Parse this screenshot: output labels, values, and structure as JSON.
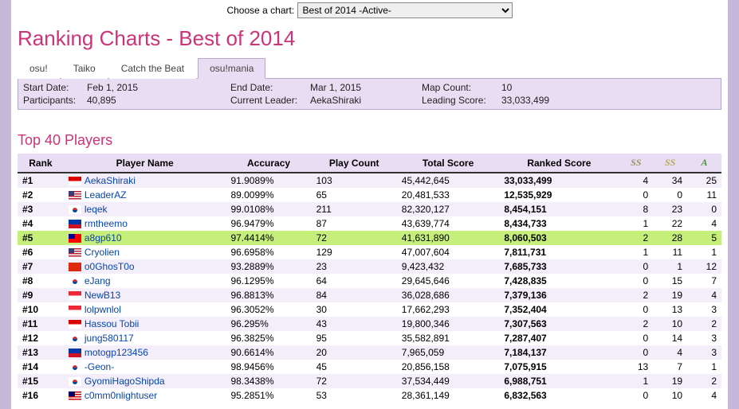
{
  "selector": {
    "label": "Choose a chart:",
    "value": "Best of 2014 -Active-"
  },
  "title": "Ranking Charts - Best of 2014",
  "tabs": [
    "osu!",
    "Taiko",
    "Catch the Beat",
    "osu!mania"
  ],
  "active_tab_index": 3,
  "info": {
    "start_date_label": "Start Date:",
    "start_date": "Feb 1, 2015",
    "end_date_label": "End Date:",
    "end_date": "Mar 1, 2015",
    "map_count_label": "Map Count:",
    "map_count": "10",
    "participants_label": "Participants:",
    "participants": "40,895",
    "leader_label": "Current Leader:",
    "leader": "AekaShiraki",
    "leading_score_label": "Leading Score:",
    "leading_score": "33,033,499"
  },
  "subheader": "Top 40 Players",
  "columns": {
    "rank": "Rank",
    "player": "Player Name",
    "accuracy": "Accuracy",
    "playcount": "Play Count",
    "total": "Total Score",
    "ranked": "Ranked Score",
    "ssh": "SS",
    "ss": "SS",
    "a": "A"
  },
  "highlight_player": "a8gp610",
  "rows": [
    {
      "rank": "#1",
      "flag": "ID",
      "player": "AekaShiraki",
      "accuracy": "91.9089%",
      "playcount": "103",
      "total": "45,442,645",
      "ranked": "33,033,499",
      "ssh": "4",
      "ss": "34",
      "a": "25"
    },
    {
      "rank": "#2",
      "flag": "US",
      "player": "LeaderAZ",
      "accuracy": "89.0099%",
      "playcount": "65",
      "total": "20,481,533",
      "ranked": "12,535,929",
      "ssh": "0",
      "ss": "0",
      "a": "11"
    },
    {
      "rank": "#3",
      "flag": "KR",
      "player": "leqek",
      "accuracy": "99.0108%",
      "playcount": "211",
      "total": "82,320,127",
      "ranked": "8,454,151",
      "ssh": "8",
      "ss": "23",
      "a": "0"
    },
    {
      "rank": "#4",
      "flag": "PH",
      "player": "rmtheemo",
      "accuracy": "96.9479%",
      "playcount": "87",
      "total": "43,639,774",
      "ranked": "8,434,733",
      "ssh": "1",
      "ss": "22",
      "a": "4"
    },
    {
      "rank": "#5",
      "flag": "TW",
      "player": "a8gp610",
      "accuracy": "97.4414%",
      "playcount": "72",
      "total": "41,631,890",
      "ranked": "8,060,503",
      "ssh": "2",
      "ss": "28",
      "a": "5"
    },
    {
      "rank": "#6",
      "flag": "US",
      "player": "Cryolien",
      "accuracy": "96.6958%",
      "playcount": "129",
      "total": "47,007,604",
      "ranked": "7,811,731",
      "ssh": "1",
      "ss": "11",
      "a": "1"
    },
    {
      "rank": "#7",
      "flag": "HK",
      "player": "o0GhosT0o",
      "accuracy": "93.2889%",
      "playcount": "23",
      "total": "9,423,432",
      "ranked": "7,685,733",
      "ssh": "0",
      "ss": "1",
      "a": "12"
    },
    {
      "rank": "#8",
      "flag": "KR",
      "player": "eJang",
      "accuracy": "96.1295%",
      "playcount": "64",
      "total": "29,645,646",
      "ranked": "7,428,835",
      "ssh": "0",
      "ss": "15",
      "a": "7"
    },
    {
      "rank": "#9",
      "flag": "SG",
      "player": "NewB13",
      "accuracy": "96.8813%",
      "playcount": "84",
      "total": "36,028,686",
      "ranked": "7,379,136",
      "ssh": "2",
      "ss": "19",
      "a": "4"
    },
    {
      "rank": "#10",
      "flag": "SG",
      "player": "lolpwnlol",
      "accuracy": "96.3052%",
      "playcount": "30",
      "total": "17,662,293",
      "ranked": "7,352,404",
      "ssh": "0",
      "ss": "13",
      "a": "3"
    },
    {
      "rank": "#11",
      "flag": "ID",
      "player": "Hassou Tobii",
      "accuracy": "96.295%",
      "playcount": "43",
      "total": "19,800,346",
      "ranked": "7,307,563",
      "ssh": "2",
      "ss": "10",
      "a": "2"
    },
    {
      "rank": "#12",
      "flag": "KR",
      "player": "jung580117",
      "accuracy": "96.3825%",
      "playcount": "95",
      "total": "35,582,891",
      "ranked": "7,287,407",
      "ssh": "0",
      "ss": "14",
      "a": "3"
    },
    {
      "rank": "#13",
      "flag": "PH",
      "player": "motogp123456",
      "accuracy": "90.6614%",
      "playcount": "20",
      "total": "7,965,059",
      "ranked": "7,184,137",
      "ssh": "0",
      "ss": "4",
      "a": "3"
    },
    {
      "rank": "#14",
      "flag": "KR",
      "player": "-Geon-",
      "accuracy": "98.9456%",
      "playcount": "45",
      "total": "20,856,158",
      "ranked": "7,075,915",
      "ssh": "13",
      "ss": "7",
      "a": "1"
    },
    {
      "rank": "#15",
      "flag": "KR",
      "player": "GyomiHagoShipda",
      "accuracy": "98.3438%",
      "playcount": "72",
      "total": "37,534,449",
      "ranked": "6,988,751",
      "ssh": "1",
      "ss": "19",
      "a": "2"
    },
    {
      "rank": "#16",
      "flag": "MY",
      "player": "c0mm0nlightuser",
      "accuracy": "95.2851%",
      "playcount": "53",
      "total": "28,361,149",
      "ranked": "6,832,563",
      "ssh": "0",
      "ss": "10",
      "a": "4"
    }
  ]
}
